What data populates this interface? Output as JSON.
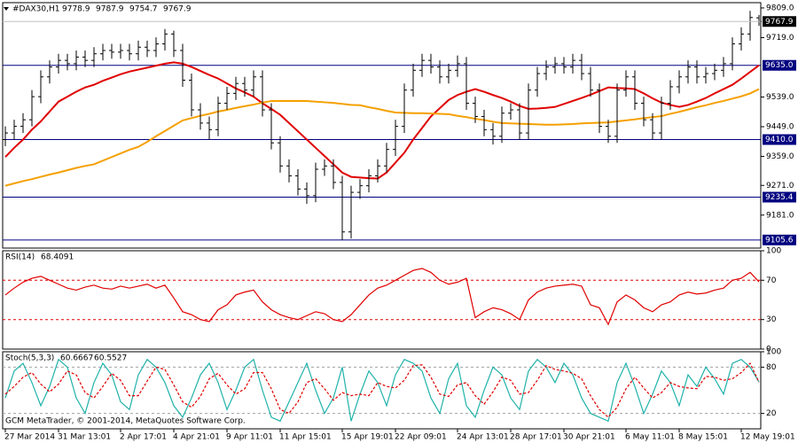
{
  "chart_data": [
    {
      "type": "ohlc",
      "title": "#DAX30,H1",
      "color": "#000000",
      "categories": [
        "27 Mar 2014",
        null,
        null,
        null,
        null,
        null,
        "31 Mar 13:01",
        null,
        null,
        null,
        null,
        null,
        null,
        "2 Apr 17:01",
        null,
        null,
        null,
        null,
        null,
        "4 Apr 21:01",
        null,
        null,
        null,
        null,
        null,
        "9 Apr 11:01",
        null,
        null,
        null,
        null,
        null,
        "11 Apr 15:01",
        null,
        null,
        null,
        null,
        null,
        null,
        "15 Apr 19:01",
        null,
        null,
        null,
        null,
        null,
        "22 Apr 09:01",
        null,
        null,
        null,
        null,
        null,
        null,
        "24 Apr 13:01",
        null,
        null,
        null,
        null,
        null,
        "28 Apr 17:01",
        null,
        null,
        null,
        null,
        null,
        "30 Apr 21:01",
        null,
        null,
        null,
        null,
        null,
        null,
        "6 May 11:01",
        null,
        null,
        null,
        null,
        null,
        "8 May 15:01",
        null,
        null,
        null,
        null,
        null,
        null,
        "12 May 19:01",
        null,
        null
      ],
      "open": [
        9410,
        9430,
        9450,
        9470,
        9540,
        9600,
        9630,
        9650,
        9640,
        9660,
        9650,
        9670,
        9680,
        9675,
        9680,
        9670,
        9690,
        9680,
        9700,
        9730,
        9680,
        9590,
        9500,
        9460,
        9440,
        9520,
        9550,
        9580,
        9560,
        9600,
        9500,
        9400,
        9330,
        9300,
        9260,
        9240,
        9320,
        9330,
        9280,
        9130,
        9250,
        9270,
        9300,
        9330,
        9380,
        9450,
        9560,
        9620,
        9650,
        9630,
        9600,
        9620,
        9640,
        9520,
        9480,
        9440,
        9420,
        9490,
        9500,
        9430,
        9560,
        9610,
        9630,
        9640,
        9630,
        9650,
        9610,
        9560,
        9450,
        9420,
        9560,
        9600,
        9520,
        9470,
        9430,
        9520,
        9570,
        9600,
        9630,
        9600,
        9610,
        9620,
        9640,
        9700,
        9730,
        9778.9
      ],
      "high": [
        9450,
        9470,
        9490,
        9560,
        9620,
        9650,
        9670,
        9670,
        9680,
        9680,
        9690,
        9700,
        9700,
        9700,
        9700,
        9710,
        9710,
        9720,
        9745,
        9740,
        9700,
        9610,
        9520,
        9480,
        9540,
        9570,
        9600,
        9600,
        9620,
        9620,
        9520,
        9420,
        9350,
        9320,
        9280,
        9340,
        9350,
        9350,
        9300,
        9270,
        9290,
        9320,
        9350,
        9400,
        9470,
        9580,
        9640,
        9670,
        9670,
        9650,
        9640,
        9665,
        9660,
        9540,
        9500,
        9460,
        9510,
        9520,
        9520,
        9580,
        9630,
        9650,
        9660,
        9660,
        9670,
        9670,
        9630,
        9580,
        9470,
        9580,
        9620,
        9620,
        9540,
        9490,
        9540,
        9590,
        9620,
        9650,
        9650,
        9630,
        9640,
        9660,
        9720,
        9750,
        9800,
        9787.9
      ],
      "low": [
        9390,
        9410,
        9430,
        9450,
        9520,
        9580,
        9610,
        9620,
        9620,
        9630,
        9630,
        9650,
        9655,
        9655,
        9650,
        9650,
        9660,
        9660,
        9680,
        9660,
        9570,
        9480,
        9440,
        9410,
        9420,
        9500,
        9530,
        9540,
        9540,
        9480,
        9380,
        9310,
        9280,
        9240,
        9215,
        9220,
        9300,
        9260,
        9106,
        9110,
        9230,
        9250,
        9280,
        9310,
        9360,
        9430,
        9540,
        9600,
        9610,
        9580,
        9580,
        9600,
        9500,
        9460,
        9420,
        9395,
        9400,
        9470,
        9410,
        9410,
        9540,
        9590,
        9610,
        9610,
        9610,
        9590,
        9540,
        9430,
        9400,
        9400,
        9540,
        9500,
        9450,
        9410,
        9410,
        9500,
        9550,
        9580,
        9580,
        9580,
        9590,
        9600,
        9620,
        9680,
        9710,
        9754.7
      ],
      "close": [
        9430,
        9450,
        9470,
        9540,
        9600,
        9630,
        9650,
        9640,
        9660,
        9650,
        9670,
        9680,
        9675,
        9680,
        9670,
        9690,
        9680,
        9700,
        9730,
        9680,
        9590,
        9500,
        9460,
        9440,
        9520,
        9550,
        9580,
        9560,
        9600,
        9500,
        9400,
        9330,
        9300,
        9260,
        9240,
        9320,
        9330,
        9280,
        9130,
        9250,
        9270,
        9300,
        9330,
        9380,
        9450,
        9560,
        9620,
        9650,
        9630,
        9600,
        9620,
        9640,
        9520,
        9480,
        9440,
        9420,
        9490,
        9500,
        9430,
        9560,
        9610,
        9630,
        9640,
        9630,
        9650,
        9610,
        9560,
        9450,
        9420,
        9560,
        9600,
        9520,
        9470,
        9430,
        9520,
        9570,
        9600,
        9630,
        9600,
        9610,
        9620,
        9640,
        9700,
        9730,
        9780,
        9767.9
      ],
      "overlays": [
        {
          "color": "#e00000",
          "values": [
            9357,
            9385,
            9410,
            9440,
            9465,
            9495,
            9525,
            9540,
            9555,
            9568,
            9576,
            9588,
            9598,
            9608,
            9616,
            9622,
            9628,
            9634,
            9640,
            9644,
            9640,
            9630,
            9618,
            9606,
            9595,
            9580,
            9565,
            9553,
            9540,
            9520,
            9503,
            9485,
            9460,
            9435,
            9410,
            9385,
            9360,
            9335,
            9310,
            9297,
            9295,
            9293,
            9292,
            9310,
            9340,
            9370,
            9410,
            9445,
            9480,
            9505,
            9530,
            9545,
            9555,
            9563,
            9555,
            9545,
            9536,
            9525,
            9512,
            9503,
            9504,
            9506,
            9509,
            9518,
            9527,
            9536,
            9546,
            9557,
            9568,
            9566,
            9565,
            9563,
            9550,
            9535,
            9522,
            9515,
            9509,
            9515,
            9525,
            9536,
            9550,
            9563,
            9576,
            9595,
            9615,
            9635
          ]
        },
        {
          "color": "#f5a000",
          "values": [
            9270,
            9277,
            9284,
            9290,
            9297,
            9304,
            9310,
            9317,
            9324,
            9330,
            9335,
            9346,
            9357,
            9368,
            9379,
            9388,
            9403,
            9420,
            9436,
            9452,
            9468,
            9475,
            9482,
            9488,
            9495,
            9500,
            9506,
            9511,
            9516,
            9522,
            9527,
            9527,
            9527,
            9527,
            9527,
            9525,
            9523,
            9521,
            9518,
            9515,
            9514,
            9508,
            9503,
            9497,
            9492,
            9491,
            9490,
            9490,
            9489,
            9488,
            9487,
            9482,
            9478,
            9473,
            9469,
            9464,
            9460,
            9459,
            9458,
            9457,
            9456,
            9455,
            9455,
            9456,
            9457,
            9459,
            9460,
            9461,
            9462,
            9465,
            9468,
            9471,
            9475,
            9478,
            9481,
            9488,
            9494,
            9501,
            9508,
            9514,
            9521,
            9527,
            9534,
            9541,
            9550,
            9563
          ]
        }
      ],
      "levels": [
        {
          "value": 9635,
          "label": "9635.0"
        },
        {
          "value": 9410,
          "label": "9410.0"
        },
        {
          "value": 9235.4,
          "label": "9235.4"
        },
        {
          "value": 9105.6,
          "label": "9105.6"
        }
      ],
      "level_color": "#000080",
      "ylim": [
        9081,
        9825
      ],
      "yticks": [
        {
          "value": 9809,
          "label": "9809.0"
        },
        {
          "value": 9719,
          "label": "9719.0"
        },
        {
          "value": 9539,
          "label": "9539.0"
        },
        {
          "value": 9449,
          "label": "9449.0"
        },
        {
          "value": 9359,
          "label": "9359.0"
        },
        {
          "value": 9271,
          "label": "9271.0"
        },
        {
          "value": 9181,
          "label": "9181.0"
        }
      ]
    },
    {
      "type": "line",
      "title": "RSI(14)",
      "color": "#e00000",
      "values": [
        55,
        62,
        68,
        72,
        74,
        70,
        66,
        62,
        60,
        63,
        65,
        62,
        61,
        64,
        62,
        64,
        66,
        62,
        65,
        52,
        38,
        35,
        30,
        28,
        40,
        45,
        55,
        58,
        60,
        48,
        40,
        35,
        32,
        30,
        34,
        38,
        36,
        30,
        28,
        35,
        45,
        55,
        62,
        65,
        70,
        75,
        80,
        82,
        78,
        70,
        66,
        68,
        72,
        32,
        38,
        42,
        40,
        36,
        30,
        50,
        58,
        62,
        64,
        65,
        66,
        64,
        45,
        42,
        25,
        48,
        55,
        50,
        42,
        38,
        45,
        48,
        55,
        58,
        56,
        57,
        60,
        62,
        70,
        72,
        78,
        68.4091
      ],
      "levels": [
        70,
        30
      ],
      "level_color": "#e00000",
      "ylim": [
        0,
        100
      ],
      "yticks": [
        100,
        70,
        30,
        0
      ]
    },
    {
      "type": "line",
      "title": "Stoch(5,3,3)",
      "series": [
        {
          "color": "#20b2aa",
          "style": "solid",
          "values": [
            40,
            75,
            85,
            60,
            30,
            55,
            90,
            80,
            40,
            20,
            60,
            85,
            70,
            35,
            25,
            70,
            90,
            80,
            60,
            30,
            15,
            40,
            70,
            85,
            60,
            25,
            50,
            80,
            90,
            50,
            15,
            10,
            35,
            60,
            85,
            50,
            20,
            40,
            80,
            10,
            45,
            75,
            60,
            30,
            70,
            90,
            85,
            75,
            40,
            20,
            65,
            85,
            30,
            15,
            50,
            80,
            70,
            40,
            25,
            75,
            90,
            80,
            60,
            85,
            70,
            40,
            20,
            15,
            10,
            60,
            85,
            55,
            20,
            45,
            75,
            60,
            30,
            70,
            55,
            80,
            65,
            45,
            85,
            90,
            80,
            60.6667
          ]
        },
        {
          "color": "#e00000",
          "style": "dashed",
          "values": [
            45,
            55,
            67,
            73,
            58,
            48,
            58,
            75,
            70,
            47,
            40,
            55,
            72,
            63,
            43,
            43,
            62,
            80,
            77,
            57,
            35,
            28,
            42,
            65,
            72,
            57,
            45,
            52,
            73,
            73,
            52,
            25,
            20,
            35,
            60,
            65,
            52,
            37,
            47,
            43,
            45,
            43,
            60,
            55,
            53,
            63,
            82,
            83,
            67,
            45,
            42,
            57,
            60,
            43,
            32,
            48,
            67,
            63,
            45,
            47,
            63,
            82,
            77,
            75,
            72,
            65,
            43,
            25,
            15,
            28,
            52,
            67,
            53,
            40,
            47,
            60,
            55,
            53,
            52,
            68,
            67,
            63,
            65,
            73,
            85,
            60.5527
          ]
        }
      ],
      "levels": [
        80,
        20
      ],
      "level_color": "#a0a0a0",
      "ylim": [
        0,
        100
      ],
      "yticks": [
        100,
        80,
        20
      ],
      "annotation": "GCM MetaTrader, © 2001-2014, MetaQuotes Software Corp."
    }
  ]
}
